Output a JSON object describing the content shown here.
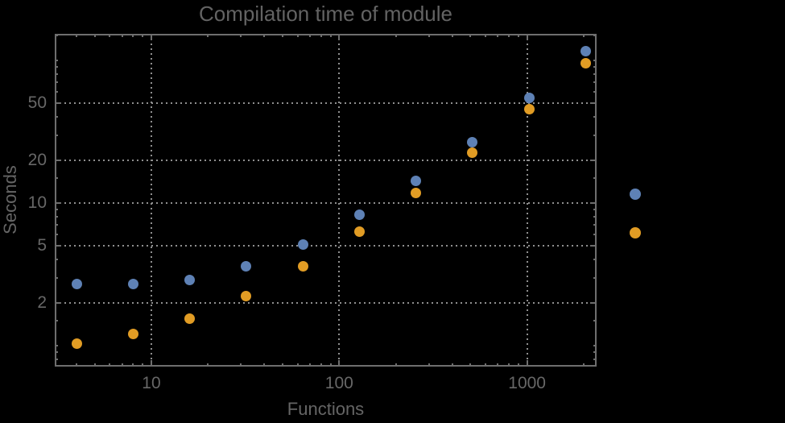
{
  "chart": {
    "title": "Compilation time of module",
    "xlabel": "Functions",
    "ylabel": "Seconds"
  },
  "chart_data": {
    "type": "scatter",
    "title": "Compilation time of module",
    "xlabel": "Functions",
    "ylabel": "Seconds",
    "xscale": "log",
    "yscale": "log",
    "xlim": [
      3.06,
      2345
    ],
    "ylim": [
      0.713,
      153.6
    ],
    "grid": "dotted lines at labeled major ticks",
    "x": [
      4,
      8,
      16,
      32,
      64,
      128,
      256,
      512,
      1024,
      2048
    ],
    "series": [
      {
        "color": "#5E81B5",
        "values": [
          2.7,
          2.7,
          2.9,
          3.6,
          5.1,
          8.3,
          14.3,
          26.6,
          54.5,
          116
        ]
      },
      {
        "color": "#E19C24",
        "values": [
          1.03,
          1.21,
          1.54,
          2.23,
          3.6,
          6.3,
          11.8,
          22.4,
          45.8,
          96
        ]
      }
    ],
    "x_ticks": {
      "major": [
        10,
        100,
        1000
      ],
      "labels": [
        "10",
        "100",
        "1000"
      ],
      "minor": [
        4,
        5,
        6,
        7,
        8,
        9,
        20,
        30,
        40,
        50,
        60,
        70,
        80,
        90,
        200,
        300,
        400,
        500,
        600,
        700,
        800,
        900,
        2000
      ]
    },
    "y_ticks": {
      "major": [
        2,
        5,
        10,
        20,
        50
      ],
      "labels": [
        "2",
        "5",
        "10",
        "20",
        "50"
      ],
      "minor": [
        0.8,
        0.9,
        1,
        1.5,
        3,
        4,
        6,
        7,
        8,
        9,
        15,
        30,
        40,
        60,
        70,
        80,
        90,
        100,
        150
      ]
    },
    "legend": {
      "position": "right-outside",
      "items": [
        {
          "color": "#5E81B5"
        },
        {
          "color": "#E19C24"
        }
      ]
    }
  },
  "colors": {
    "background": "#000000",
    "frame": "#6e6e6e",
    "grid": "#8f8f8f",
    "text": "#656565",
    "series1": "#5E81B5",
    "series2": "#E19C24"
  }
}
